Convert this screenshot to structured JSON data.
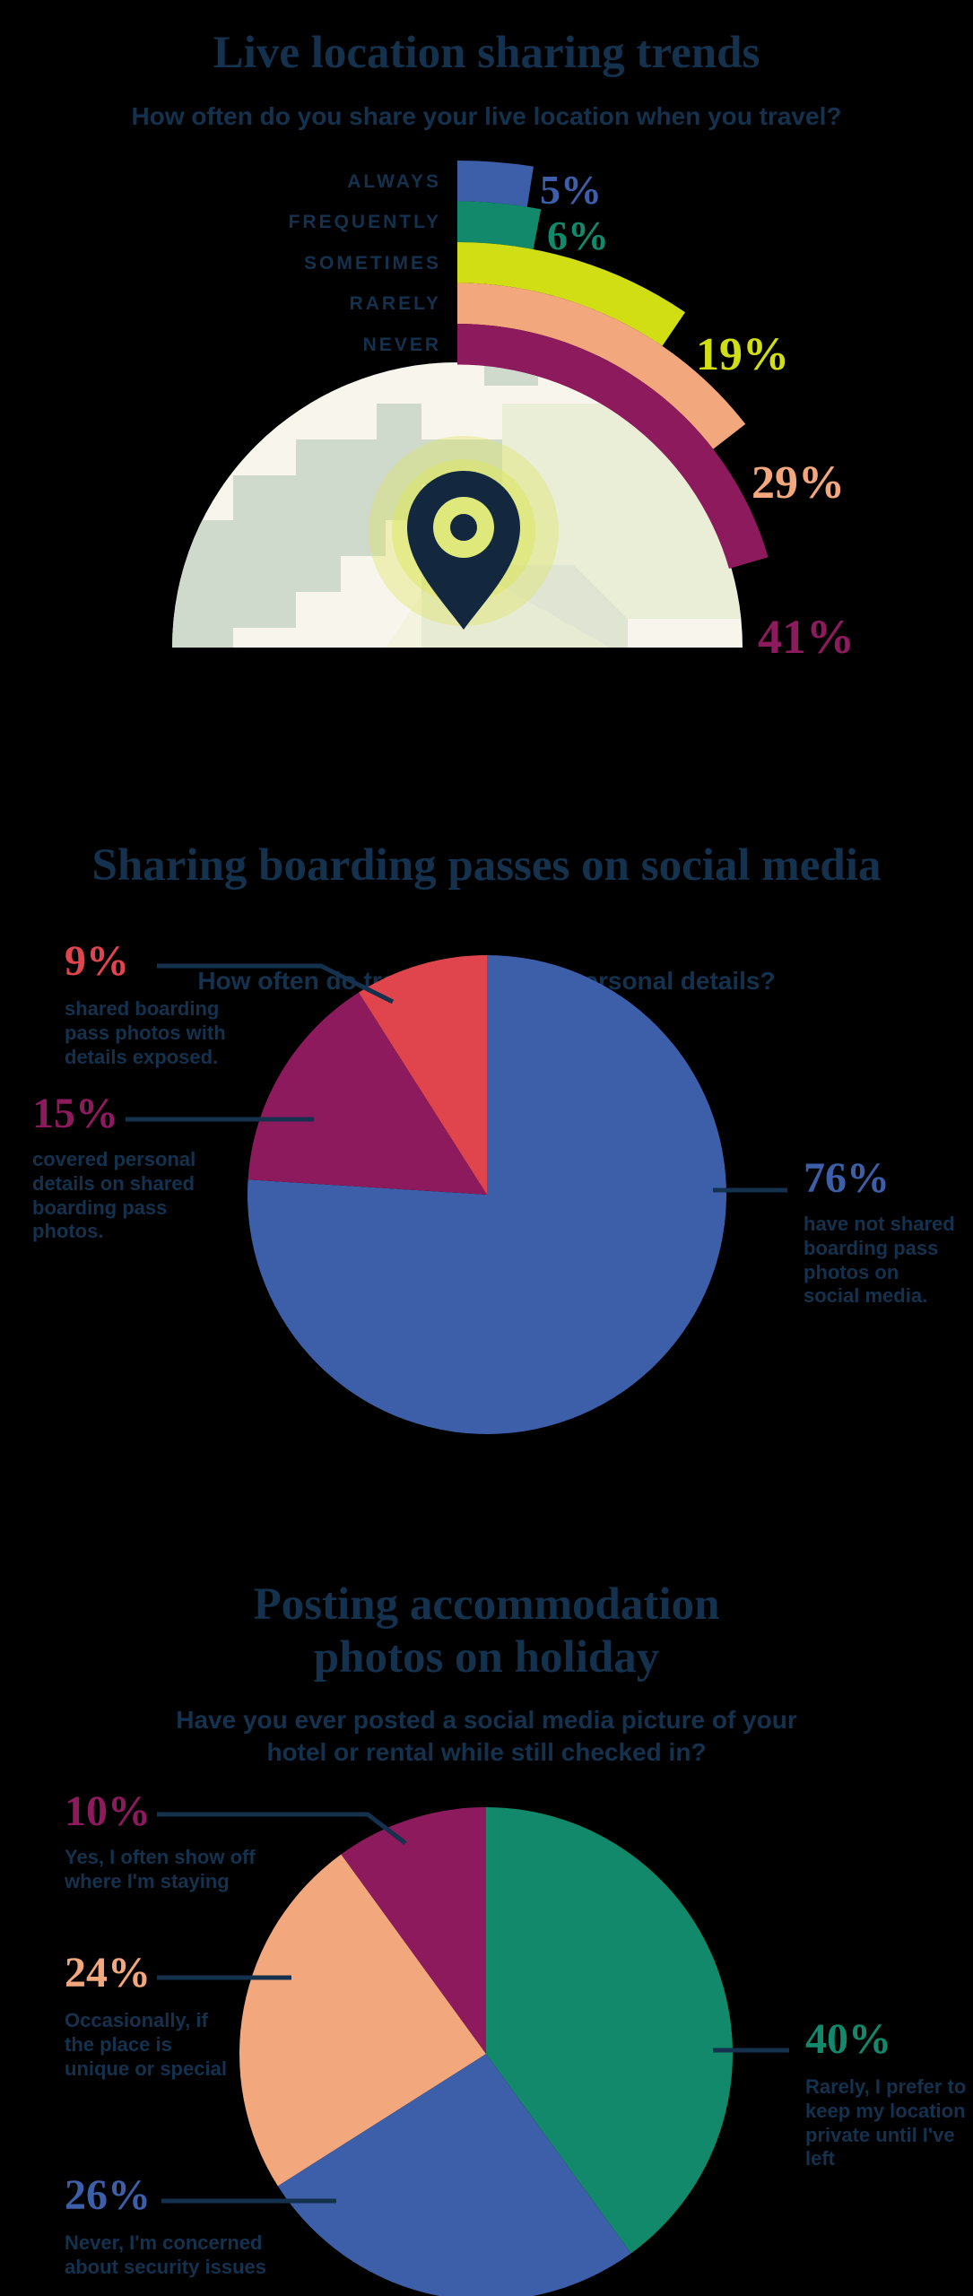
{
  "page": {
    "background": "#000000",
    "text_color": "#14314e"
  },
  "sections": [
    {
      "title": "Live location sharing trends",
      "subtitle": "How often do you share your live location when you travel?"
    },
    {
      "title": "Sharing boarding passes on social media",
      "subtitle": "How often do travelers expose personal details?"
    },
    {
      "title": "Posting accommodation\nphotos on holiday",
      "subtitle": "Have you ever posted a social media picture of your\nhotel or rental while still checked in?"
    }
  ],
  "chart_data": [
    {
      "type": "radial-bar",
      "title": "Live location sharing trends",
      "question": "How often do you share your live location when you travel?",
      "categories": [
        "ALWAYS",
        "FREQUENTLY",
        "SOMETIMES",
        "RARELY",
        "NEVER"
      ],
      "values": [
        5,
        6,
        19,
        29,
        41
      ],
      "unit": "%",
      "value_labels": [
        "5%",
        "6%",
        "19%",
        "29%",
        "41%"
      ],
      "colors": [
        "#3d5fa9",
        "#12896a",
        "#d2de14",
        "#f3a77d",
        "#8c1a5d"
      ],
      "center_illustration": "globe-with-location-pin"
    },
    {
      "type": "pie",
      "title": "Sharing boarding passes on social media",
      "slices": [
        {
          "label": "76%",
          "value": 76,
          "color": "#3d5fa9",
          "description": "have not shared\nboarding pass\nphotos on\nsocial media."
        },
        {
          "label": "15%",
          "value": 15,
          "color": "#8c1a5d",
          "description": "covered personal\ndetails on shared\nboarding pass photos."
        },
        {
          "label": "9%",
          "value": 9,
          "color": "#e0454e",
          "description": "shared boarding\npass photos with\ndetails exposed."
        }
      ]
    },
    {
      "type": "pie",
      "title": "Posting accommodation photos on holiday",
      "slices": [
        {
          "label": "40%",
          "value": 40,
          "color": "#12896a",
          "description": "Rarely, I prefer to\nkeep my location\nprivate until I've left"
        },
        {
          "label": "26%",
          "value": 26,
          "color": "#3d5fa9",
          "description": "Never, I'm concerned\nabout security issues"
        },
        {
          "label": "24%",
          "value": 24,
          "color": "#f3a77d",
          "description": "Occasionally, if\nthe place is\nunique or special"
        },
        {
          "label": "10%",
          "value": 10,
          "color": "#8c1a5d",
          "description": "Yes, I often show off\nwhere I'm staying"
        }
      ]
    }
  ]
}
